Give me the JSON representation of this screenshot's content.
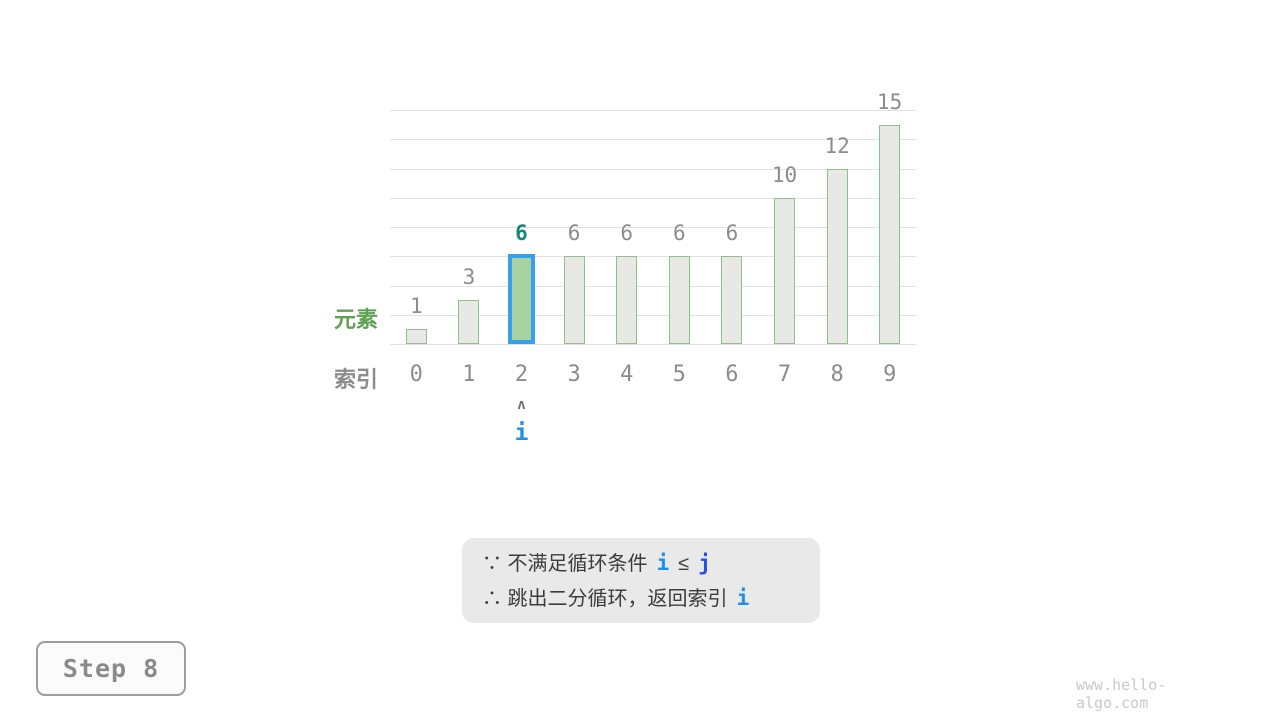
{
  "chart_data": {
    "type": "bar",
    "categories": [
      "0",
      "1",
      "2",
      "3",
      "4",
      "5",
      "6",
      "7",
      "8",
      "9"
    ],
    "values": [
      1,
      3,
      6,
      6,
      6,
      6,
      6,
      10,
      12,
      15
    ],
    "value_labels": [
      "1",
      "3",
      "6",
      "6",
      "6",
      "6",
      "6",
      "10",
      "12",
      "15"
    ],
    "highlighted_index": 2,
    "title": "",
    "xlabel": "索引",
    "ylabel": "元素",
    "ylim": [
      0,
      16
    ],
    "gridline_step": 2,
    "grid": true,
    "legend_position": "none",
    "pointer": {
      "index": 2,
      "caret": "ʌ",
      "label": "i"
    }
  },
  "note": {
    "lines": [
      {
        "parts": [
          {
            "t": "∵ 不满足循环条件",
            "s": "plain"
          },
          {
            "t": "i",
            "s": "var-blue"
          },
          {
            "t": "≤",
            "s": "plain"
          },
          {
            "t": "j",
            "s": "var-indigo"
          }
        ]
      },
      {
        "parts": [
          {
            "t": "∴ 跳出二分循环，返回索引",
            "s": "plain"
          },
          {
            "t": "i",
            "s": "var-blue"
          }
        ]
      }
    ]
  },
  "step_label": "Step 8",
  "watermark": "www.hello-algo.com",
  "colors": {
    "bar_fill": "#e8e8e4",
    "bar_border": "#8fc08c",
    "highlight_fill": "#a7d2a1",
    "highlight_border": "#38a0e6",
    "highlight_value": "#17877b",
    "value_label": "#8c8c8c",
    "tick_label": "#8c8c8c",
    "ylabel_color": "#5fa052",
    "xlabel_color": "#8c8c8c",
    "gridline": "#e2e2e2",
    "pointer_blue": "#1d8fe8",
    "j_indigo": "#2c4fe0",
    "note_bg": "#e9e9e9",
    "note_text": "#3c3c3c"
  }
}
